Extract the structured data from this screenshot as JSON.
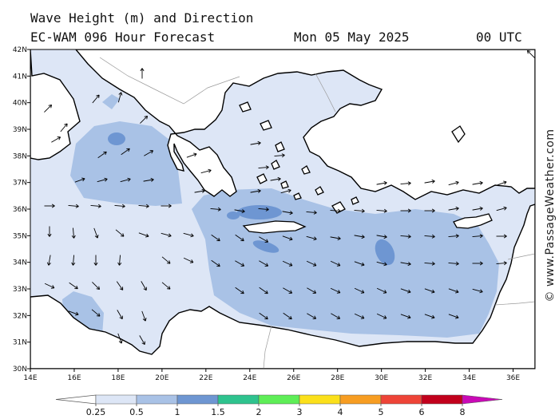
{
  "header": {
    "title": "Wave Height (m) and Direction",
    "model": "EC-WAM 096 Hour Forecast",
    "date": "Mon 05 May 2025",
    "time": "00 UTC"
  },
  "credit": "© www.PassageWeather.com",
  "map": {
    "lon_range": [
      14,
      37
    ],
    "lat_range": [
      30,
      42
    ],
    "x_ticks": [
      "14E",
      "16E",
      "18E",
      "20E",
      "22E",
      "24E",
      "26E",
      "28E",
      "30E",
      "32E",
      "34E",
      "36E"
    ],
    "y_ticks": [
      "30N",
      "31N",
      "32N",
      "33N",
      "34N",
      "35N",
      "36N",
      "37N",
      "38N",
      "39N",
      "40N",
      "41N",
      "42N"
    ],
    "land_color": "#ffffff",
    "coast_color": "#000000"
  },
  "legend": {
    "labels": [
      "0.25",
      "0.5",
      "1",
      "1.5",
      "2",
      "3",
      "4",
      "5",
      "6",
      "8"
    ],
    "colors": [
      "#dde6f6",
      "#a9c2e6",
      "#6e96d2",
      "#2ec38e",
      "#5eee57",
      "#fbe01b",
      "#f79d22",
      "#ee4437",
      "#c2001c",
      "#c90ab6"
    ]
  }
}
